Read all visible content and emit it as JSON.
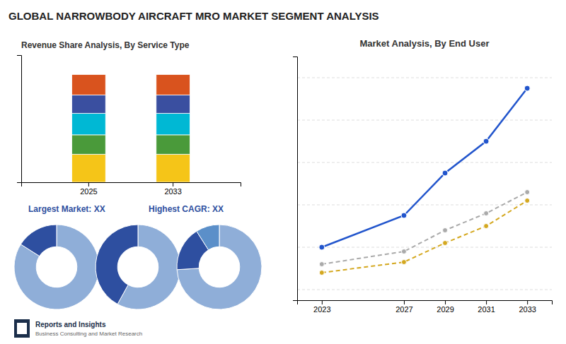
{
  "title": "GLOBAL NARROWBODY AIRCRAFT MRO MARKET SEGMENT ANALYSIS",
  "annotations": [
    "Reports and Insights",
    "Business Consulting and Market Research"
  ],
  "chart_data": [
    {
      "type": "bar",
      "stacked": true,
      "title": "Revenue Share Analysis, By Service Type",
      "categories": [
        "2025",
        "2033"
      ],
      "series": [
        {
          "color": "#f5c518",
          "values": [
            0.26,
            0.26
          ]
        },
        {
          "color": "#4a9a3a",
          "values": [
            0.18,
            0.18
          ]
        },
        {
          "color": "#00b8d4",
          "values": [
            0.2,
            0.2
          ]
        },
        {
          "color": "#3a4fa0",
          "values": [
            0.17,
            0.17
          ]
        },
        {
          "color": "#d9531e",
          "values": [
            0.19,
            0.19
          ]
        }
      ],
      "ylim": [
        0,
        1.18
      ],
      "tick_labels": "x",
      "grid": false,
      "annotations": [
        "Largest Market: XX",
        "Highest CAGR: XX"
      ]
    },
    {
      "type": "line",
      "title": "Market Analysis, By End User",
      "x": [
        2023,
        2027,
        2029,
        2031,
        2033
      ],
      "series": [
        {
          "color": "#2255cc",
          "line_style": "solid",
          "marker": "circle",
          "values": [
            2.0,
            3.5,
            5.5,
            7.0,
            9.5
          ]
        },
        {
          "color": "#aaaaaa",
          "line_style": "dashed",
          "marker": "circle",
          "values": [
            1.2,
            1.8,
            2.8,
            3.6,
            4.6
          ]
        },
        {
          "color": "#d4a820",
          "line_style": "dashed",
          "marker": "circle",
          "values": [
            0.8,
            1.3,
            2.2,
            3.0,
            4.2
          ]
        }
      ],
      "xlim": [
        2021.8,
        2034.2
      ],
      "xticks": [
        2023,
        2027,
        2029,
        2031,
        2033
      ],
      "ylim": [
        -0.5,
        11.0
      ],
      "yticks": [
        0,
        2,
        4,
        6,
        8,
        10
      ],
      "grid": true,
      "tick_labels": "x"
    },
    {
      "type": "pie",
      "values": [
        0.84,
        0.16
      ],
      "colors": [
        "#8faed8",
        "#2e4fa0"
      ]
    },
    {
      "type": "pie",
      "values": [
        0.58,
        0.42
      ],
      "colors": [
        "#8faed8",
        "#2e4fa0"
      ]
    },
    {
      "type": "pie",
      "values": [
        0.74,
        0.17,
        0.09
      ],
      "colors": [
        "#8faed8",
        "#2e4fa0",
        "#5b8fc9"
      ]
    }
  ]
}
